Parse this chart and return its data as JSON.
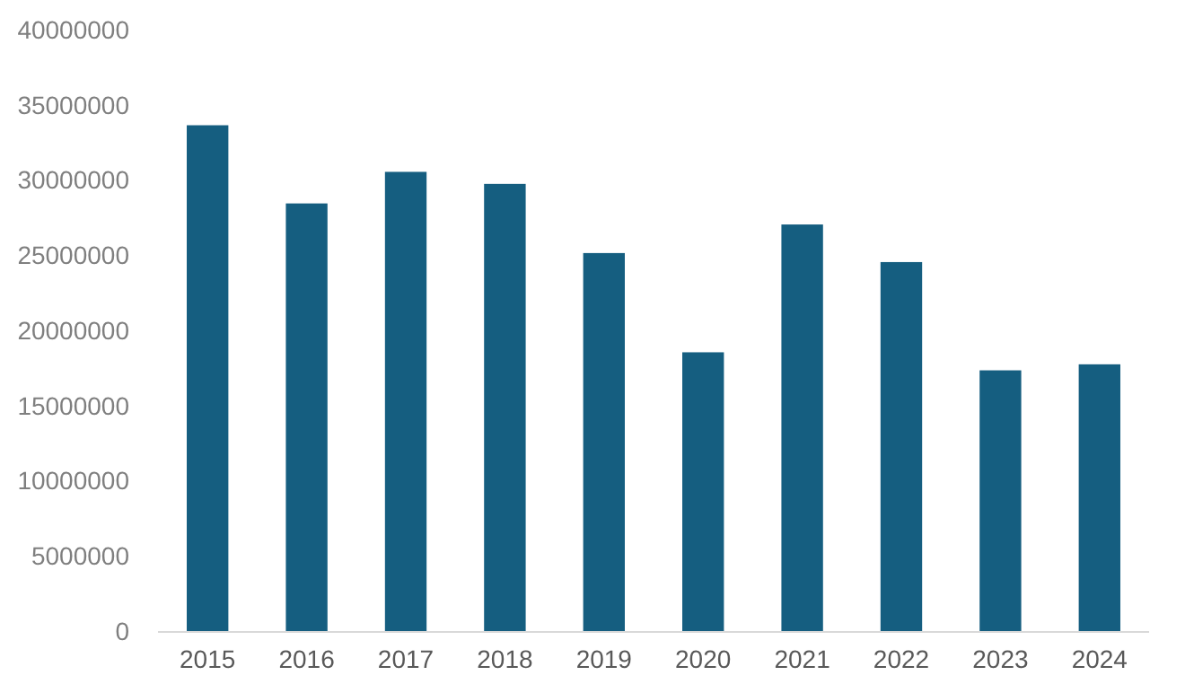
{
  "chart_data": {
    "type": "bar",
    "categories": [
      "2015",
      "2016",
      "2017",
      "2018",
      "2019",
      "2020",
      "2021",
      "2022",
      "2023",
      "2024"
    ],
    "values": [
      33700000,
      28500000,
      30600000,
      29800000,
      25200000,
      18600000,
      27100000,
      24600000,
      17400000,
      17800000
    ],
    "color": "#155e80",
    "ylim": [
      0,
      40000000
    ],
    "yticks": [
      0,
      5000000,
      10000000,
      15000000,
      20000000,
      25000000,
      30000000,
      35000000,
      40000000
    ],
    "grid": false
  }
}
